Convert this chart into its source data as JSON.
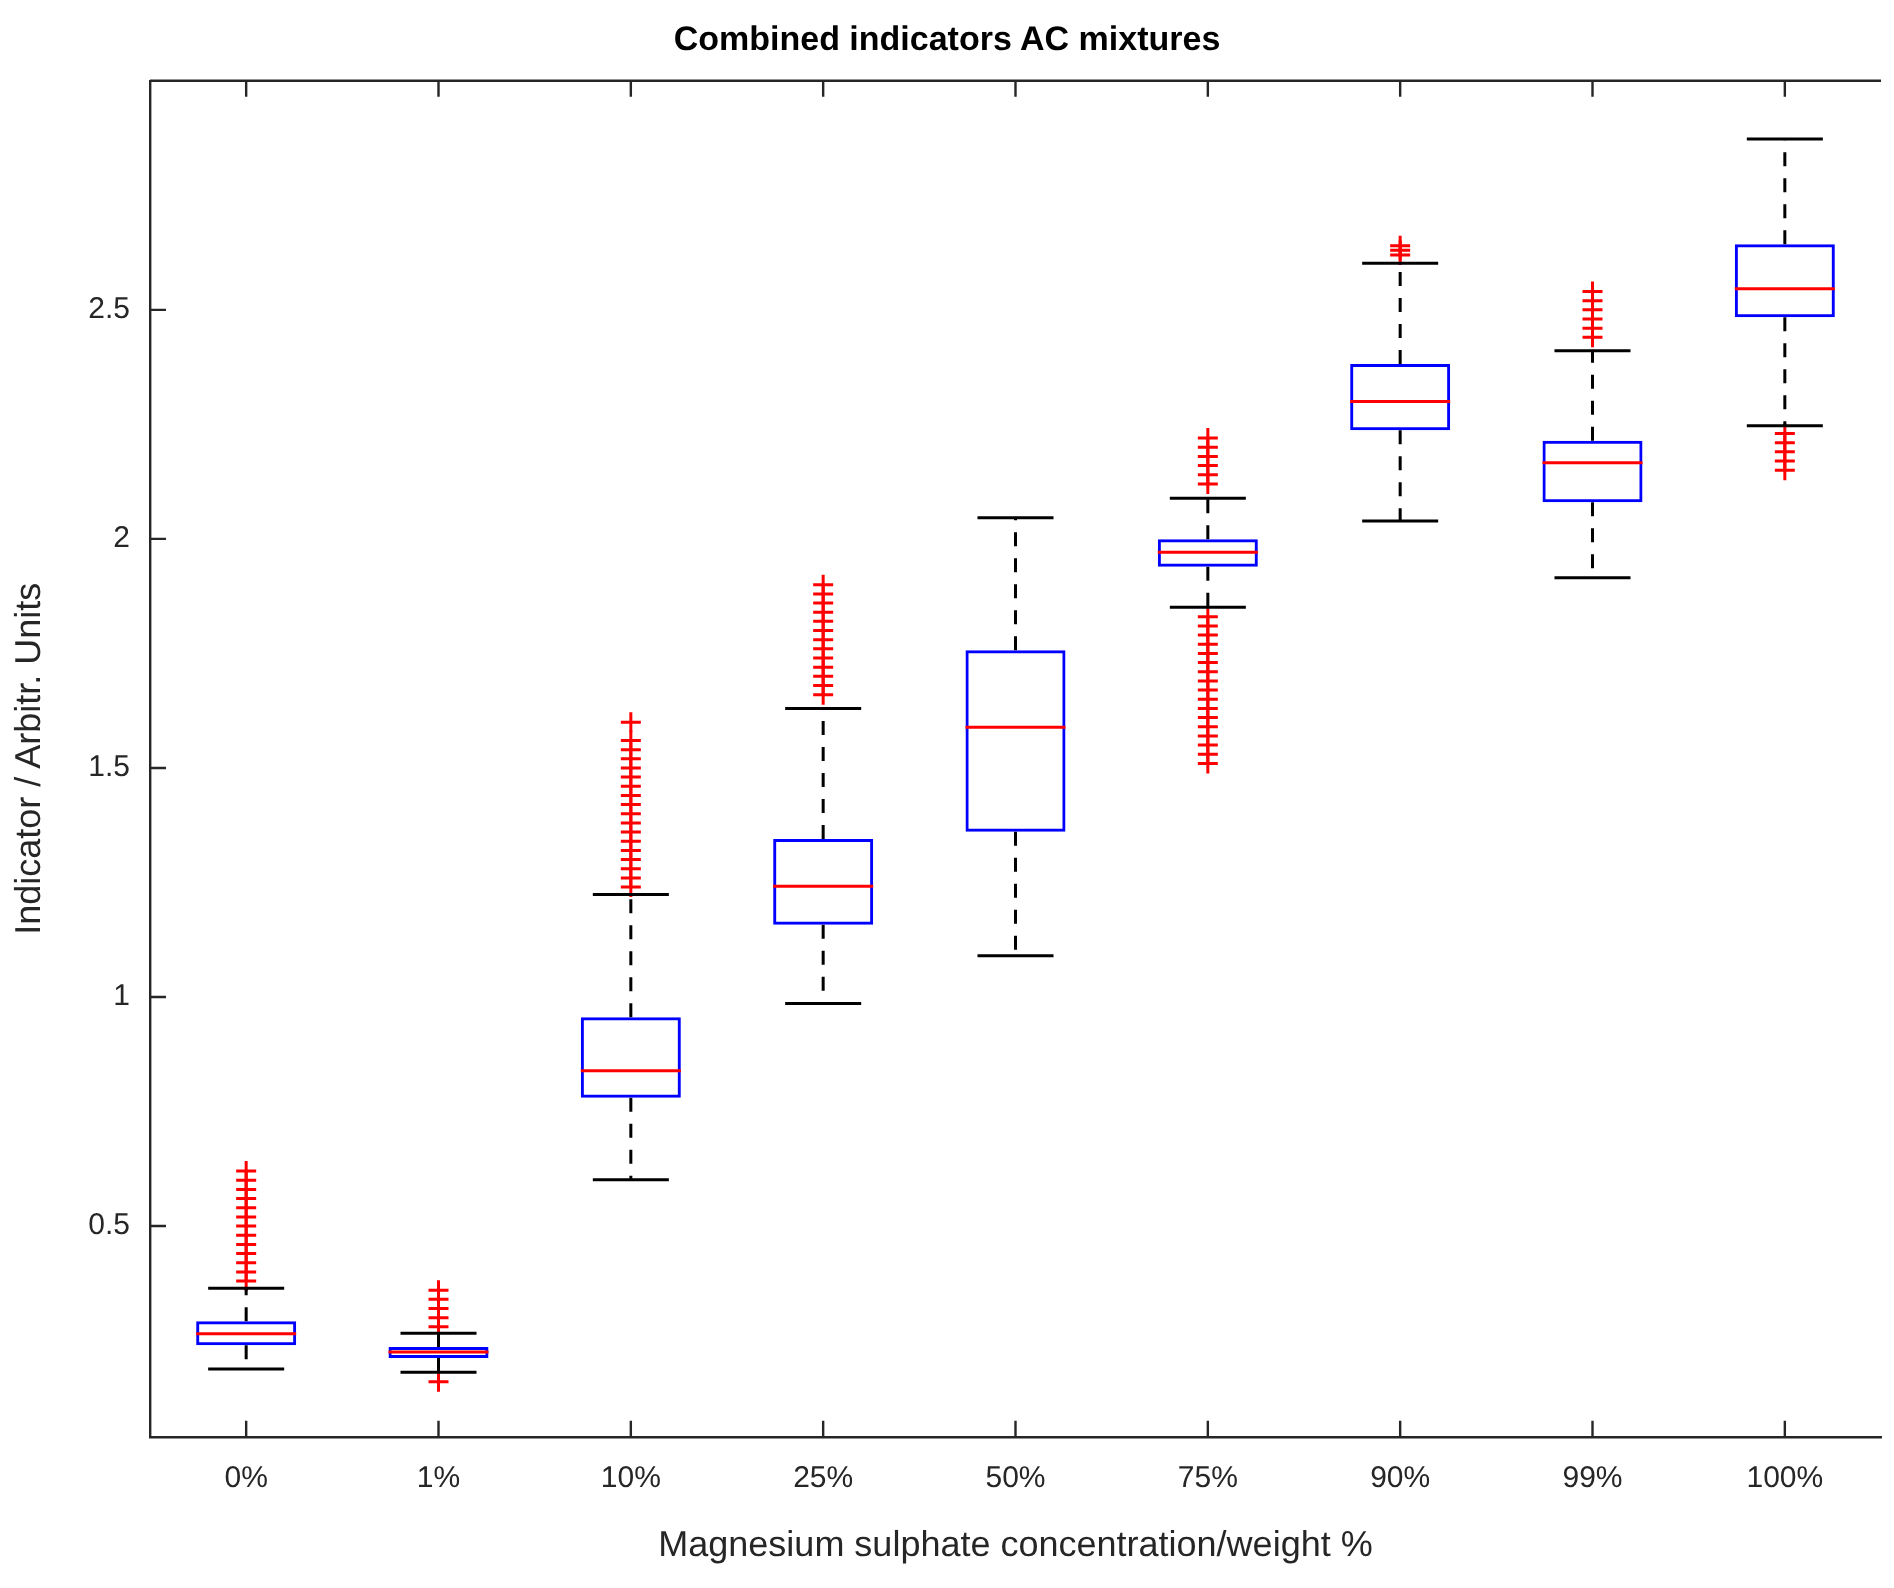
{
  "chart_data": {
    "type": "box",
    "title": "Combined indicators AC mixtures",
    "xlabel": "Magnesium sulphate concentration/weight %",
    "ylabel": "Indicator / Arbitr. Units",
    "categories": [
      "0%",
      "1%",
      "10%",
      "25%",
      "50%",
      "75%",
      "90%",
      "99%",
      "100%"
    ],
    "ylim": [
      0.04,
      3.0
    ],
    "yticks": [
      0.5,
      1,
      1.5,
      2,
      2.5
    ],
    "grid": false,
    "legend": false,
    "marker": "cross",
    "series": [
      {
        "color": "#0000ff",
        "boxes": [
          {
            "low": 0.188,
            "q1": 0.24,
            "median": 0.265,
            "q3": 0.292,
            "high": 0.364,
            "outliers": [
              0.38,
              0.4,
              0.42,
              0.44,
              0.46,
              0.48,
              0.5,
              0.52,
              0.54,
              0.56,
              0.58,
              0.6,
              0.62
            ]
          },
          {
            "low": 0.181,
            "q1": 0.212,
            "median": 0.225,
            "q3": 0.236,
            "high": 0.266,
            "outliers": [
              0.16,
              0.28,
              0.3,
              0.32,
              0.34,
              0.36
            ]
          },
          {
            "low": 0.601,
            "q1": 0.78,
            "median": 0.839,
            "q3": 0.956,
            "high": 1.224,
            "outliers": [
              1.24,
              1.26,
              1.28,
              1.3,
              1.32,
              1.34,
              1.36,
              1.38,
              1.4,
              1.42,
              1.44,
              1.46,
              1.48,
              1.5,
              1.52,
              1.54,
              1.56,
              1.6
            ]
          },
          {
            "low": 0.986,
            "q1": 1.158,
            "median": 1.242,
            "q3": 1.345,
            "high": 1.63,
            "outliers": [
              1.66,
              1.68,
              1.7,
              1.72,
              1.74,
              1.76,
              1.78,
              1.8,
              1.82,
              1.84,
              1.86,
              1.88,
              1.9
            ]
          },
          {
            "low": 1.09,
            "q1": 1.361,
            "median": 1.589,
            "q3": 1.757,
            "high": 2.046
          },
          {
            "low": 1.851,
            "q1": 1.939,
            "median": 1.971,
            "q3": 1.999,
            "high": 2.089,
            "outliers": [
              1.51,
              1.53,
              1.55,
              1.57,
              1.59,
              1.61,
              1.63,
              1.65,
              1.67,
              1.69,
              1.71,
              1.73,
              1.75,
              1.77,
              1.79,
              1.81,
              1.83,
              2.12,
              2.14,
              2.16,
              2.18,
              2.2,
              2.22
            ]
          },
          {
            "low": 2.039,
            "q1": 2.237,
            "median": 2.3,
            "q3": 2.382,
            "high": 2.602,
            "outliers": [
              2.62,
              2.63,
              2.64
            ]
          },
          {
            "low": 1.915,
            "q1": 2.08,
            "median": 2.166,
            "q3": 2.214,
            "high": 2.411,
            "outliers": [
              2.44,
              2.46,
              2.48,
              2.5,
              2.52,
              2.54
            ]
          },
          {
            "low": 2.247,
            "q1": 2.484,
            "median": 2.546,
            "q3": 2.643,
            "high": 2.873,
            "outliers": [
              2.15,
              2.17,
              2.19,
              2.21,
              2.23
            ]
          }
        ]
      }
    ]
  }
}
